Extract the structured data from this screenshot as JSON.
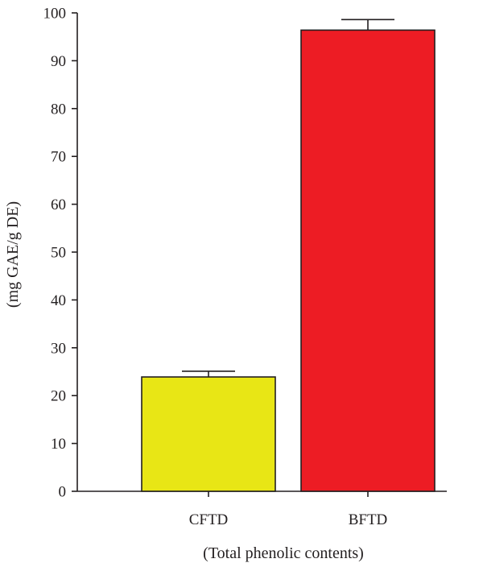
{
  "chart_data": {
    "type": "bar",
    "categories": [
      "CFTD",
      "BFTD"
    ],
    "values": [
      23.9,
      96.4
    ],
    "errors": [
      1.2,
      2.2
    ],
    "colors": [
      "#e8e615",
      "#ed1c24"
    ],
    "xlabel": "(Total phenolic contents)",
    "ylabel": "(mg GAE/g DE)",
    "ylim": [
      0,
      100
    ],
    "yticks": [
      0,
      10,
      20,
      30,
      40,
      50,
      60,
      70,
      80,
      90,
      100
    ],
    "grid": false
  }
}
